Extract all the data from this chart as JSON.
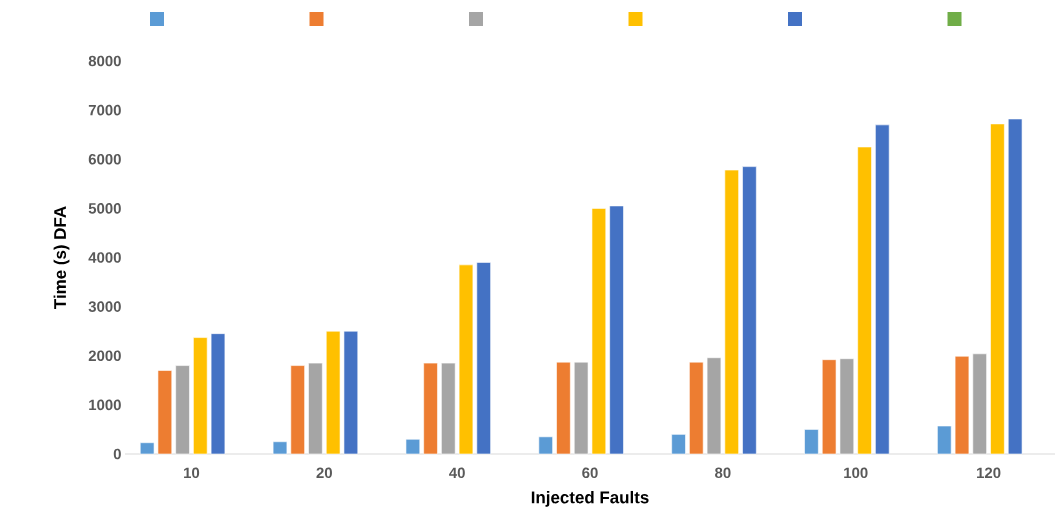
{
  "chart_data": {
    "type": "bar",
    "xlabel": "Injected Faults",
    "ylabel": "Time (s) DFA",
    "categories": [
      "10",
      "20",
      "40",
      "60",
      "80",
      "100",
      "120"
    ],
    "series": [
      {
        "color": "#5b9bd5",
        "values": [
          230,
          250,
          300,
          350,
          400,
          500,
          570
        ]
      },
      {
        "color": "#ed7d31",
        "values": [
          1700,
          1800,
          1850,
          1870,
          1870,
          1920,
          1990
        ]
      },
      {
        "color": "#a5a5a5",
        "values": [
          1800,
          1850,
          1850,
          1870,
          1960,
          1940,
          2040
        ]
      },
      {
        "color": "#ffc000",
        "values": [
          2370,
          2500,
          3850,
          5000,
          5780,
          6250,
          6720
        ]
      },
      {
        "color": "#4472c4",
        "values": [
          2450,
          2500,
          3900,
          5050,
          5850,
          6700,
          6820
        ]
      },
      {
        "color": "#70ad47",
        "values": [
          null,
          null,
          null,
          null,
          null,
          null,
          null
        ]
      }
    ],
    "ylim": [
      0,
      8000
    ],
    "yticks": [
      0,
      1000,
      2000,
      3000,
      4000,
      5000,
      6000,
      7000,
      8000
    ],
    "grid": false
  }
}
